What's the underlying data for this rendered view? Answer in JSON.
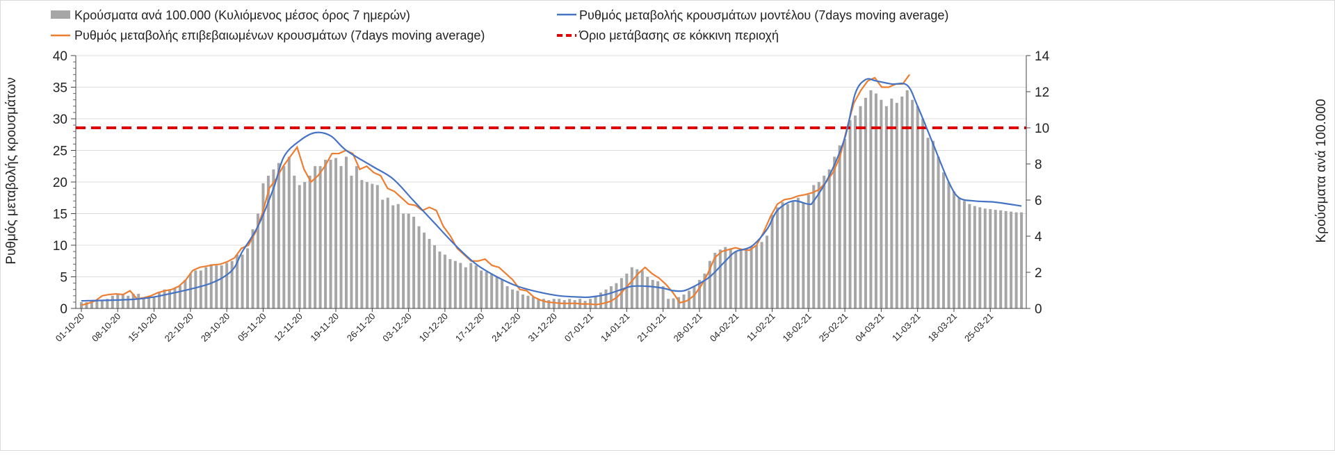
{
  "chart_data": {
    "type": "bar+line",
    "legend": [
      {
        "label": "Κρούσματα ανά 100.000 (Κυλιόμενος μέσος όρος 7 ημερών)",
        "color": "#a6a6a6",
        "kind": "bar"
      },
      {
        "label": "Ρυθμός μεταβολής κρουσμάτων μοντέλου (7days moving average)",
        "color": "#4472c4",
        "kind": "line"
      },
      {
        "label": "Ρυθμός μεταβολής επιβεβαιωμένων κρουσμάτων (7days moving average)",
        "color": "#ed7d31",
        "kind": "line"
      },
      {
        "label": "Όριο μετάβασης σε κόκκινη περιοχή",
        "color": "#e00000",
        "kind": "dashed"
      }
    ],
    "legend_placement": "top",
    "ylabel_left": "Ρυθμός μεταβολής κρουσμάτων",
    "ylabel_right": "Κρούσματα ανά 100.000",
    "ylim_left": [
      0,
      40
    ],
    "ylim_right": [
      0,
      14
    ],
    "yticks_left": [
      "0",
      "5",
      "10",
      "15",
      "20",
      "25",
      "30",
      "35",
      "40"
    ],
    "yticks_right": [
      "0",
      "2",
      "4",
      "6",
      "8",
      "10",
      "12",
      "14"
    ],
    "x_start": "01-10-20",
    "x_days": 182,
    "xticks": [
      "01-10-20",
      "08-10-20",
      "15-10-20",
      "22-10-20",
      "29-10-20",
      "05-11-20",
      "12-11-20",
      "19-11-20",
      "26-11-20",
      "03-12-20",
      "10-12-20",
      "17-12-20",
      "24-12-20",
      "31-12-20",
      "07-01-21",
      "14-01-21",
      "21-01-21",
      "28-01-21",
      "04-02-21",
      "11-02-21",
      "18-02-21",
      "25-02-21",
      "04-03-21",
      "11-03-21",
      "18-03-21",
      "25-03-21"
    ],
    "threshold_right": 10,
    "bars_per100k": [
      0.35,
      0.35,
      0.35,
      0.42,
      0.42,
      0.53,
      0.7,
      0.77,
      0.77,
      0.7,
      0.81,
      0.81,
      0.63,
      0.63,
      0.67,
      0.88,
      1.05,
      1.05,
      1.12,
      1.26,
      1.58,
      1.93,
      2.1,
      2.1,
      2.28,
      2.45,
      2.38,
      2.38,
      2.52,
      2.63,
      2.98,
      2.98,
      3.33,
      4.38,
      5.25,
      6.93,
      7.35,
      7.7,
      8.05,
      7.88,
      8.4,
      7.35,
      6.83,
      7.0,
      7.35,
      7.88,
      7.88,
      8.23,
      8.23,
      8.33,
      7.88,
      8.4,
      7.35,
      7.88,
      7.11,
      7.0,
      6.9,
      6.83,
      6.02,
      6.13,
      5.71,
      5.78,
      5.25,
      5.25,
      5.08,
      4.55,
      4.2,
      3.85,
      3.5,
      3.15,
      2.98,
      2.73,
      2.63,
      2.52,
      2.28,
      2.52,
      2.38,
      2.1,
      2.03,
      1.93,
      1.75,
      1.58,
      1.23,
      1.05,
      0.98,
      0.77,
      0.7,
      0.63,
      0.53,
      0.53,
      0.46,
      0.53,
      0.53,
      0.46,
      0.53,
      0.46,
      0.53,
      0.42,
      0.53,
      0.7,
      0.88,
      1.05,
      1.23,
      1.4,
      1.68,
      1.93,
      2.28,
      2.17,
      2.1,
      1.75,
      1.58,
      1.51,
      1.23,
      0.53,
      0.56,
      0.63,
      0.77,
      0.98,
      1.23,
      1.58,
      1.93,
      2.63,
      3.08,
      3.26,
      3.4,
      3.33,
      3.15,
      3.26,
      3.33,
      3.43,
      3.5,
      3.68,
      4.03,
      5.18,
      5.6,
      5.88,
      5.78,
      5.95,
      6.13,
      5.88,
      6.3,
      6.83,
      7.0,
      7.35,
      7.7,
      8.4,
      9.03,
      9.38,
      10.43,
      10.68,
      11.2,
      11.66,
      12.08,
      11.9,
      11.55,
      11.2,
      11.62,
      11.38,
      11.73,
      12.08,
      11.55,
      11.2,
      10.5,
      9.45,
      9.28,
      8.4,
      7.53,
      7.0,
      6.48,
      6.13,
      5.95,
      5.78,
      5.67,
      5.6,
      5.53,
      5.5,
      5.46,
      5.43,
      5.39,
      5.36,
      5.32,
      5.32
    ],
    "model_rate": [
      [
        0,
        1.2
      ],
      [
        11,
        1.5
      ],
      [
        18,
        2.5
      ],
      [
        25,
        4
      ],
      [
        29,
        6
      ],
      [
        31,
        9
      ],
      [
        34,
        13
      ],
      [
        37,
        19
      ],
      [
        39,
        24
      ],
      [
        42,
        26.5
      ],
      [
        45,
        27.8
      ],
      [
        48,
        27.3
      ],
      [
        51,
        25
      ],
      [
        56,
        22.5
      ],
      [
        60,
        20.5
      ],
      [
        64,
        17
      ],
      [
        68,
        13.5
      ],
      [
        72,
        10
      ],
      [
        76,
        7
      ],
      [
        80,
        5
      ],
      [
        84,
        3.5
      ],
      [
        88,
        2.6
      ],
      [
        92,
        2
      ],
      [
        96,
        1.8
      ],
      [
        98,
        1.8
      ],
      [
        101,
        2.2
      ],
      [
        104,
        3
      ],
      [
        106,
        3.5
      ],
      [
        109,
        3.5
      ],
      [
        112,
        3.2
      ],
      [
        114,
        2.8
      ],
      [
        116,
        2.8
      ],
      [
        118,
        3.5
      ],
      [
        121,
        5
      ],
      [
        124,
        7.5
      ],
      [
        126,
        9
      ],
      [
        129,
        9.8
      ],
      [
        132,
        12.5
      ],
      [
        134,
        15.5
      ],
      [
        137,
        17
      ],
      [
        140,
        16.5
      ],
      [
        141,
        17
      ],
      [
        144,
        21
      ],
      [
        147,
        27
      ],
      [
        149,
        34
      ],
      [
        151,
        36.2
      ],
      [
        153,
        36
      ],
      [
        156,
        35.5
      ],
      [
        159,
        35.3
      ],
      [
        161,
        32
      ],
      [
        164,
        26
      ],
      [
        167,
        20
      ],
      [
        169,
        17.5
      ],
      [
        172,
        17
      ],
      [
        176,
        16.8
      ],
      [
        181,
        16.2
      ]
    ],
    "confirmed_rate_step_days": 1.34,
    "confirmed_rate": [
      0.5,
      0.8,
      1.2,
      2,
      2.2,
      2.3,
      2.2,
      2.8,
      1.5,
      1.7,
      2,
      2.5,
      2.8,
      3,
      3.5,
      4.5,
      6,
      6.5,
      6.7,
      6.9,
      7,
      7.4,
      8,
      9.5,
      10,
      12,
      15,
      19,
      20.5,
      22.5,
      24,
      25.5,
      22,
      20,
      21,
      22.5,
      24.5,
      24.5,
      25,
      24.5,
      22,
      22.5,
      21.5,
      21,
      19,
      18.5,
      17.5,
      16.5,
      16.3,
      15.5,
      16,
      15.5,
      13,
      11.5,
      9.5,
      8.5,
      7.5,
      7.5,
      7.8,
      6.8,
      6.5,
      5.5,
      4.5,
      3,
      2.8,
      1.8,
      1.3,
      1,
      0.9,
      0.8,
      0.8,
      0.8,
      0.7,
      0.7,
      0.6,
      0.8,
      1.1,
      1.8,
      3,
      4.2,
      5.5,
      6.5,
      5.5,
      4.8,
      3.8,
      2.5,
      0.9,
      1.2,
      2,
      3.5,
      5.5,
      8,
      9,
      9.3,
      9.6,
      9.3,
      9.2,
      10,
      12,
      14.5,
      16.5,
      17.2,
      17.4,
      17.8,
      18,
      18.3,
      18.8,
      20,
      21.5,
      24,
      28.5,
      32.5,
      34.5,
      36,
      36.5,
      35,
      35,
      35.5,
      35.5,
      37
    ]
  }
}
